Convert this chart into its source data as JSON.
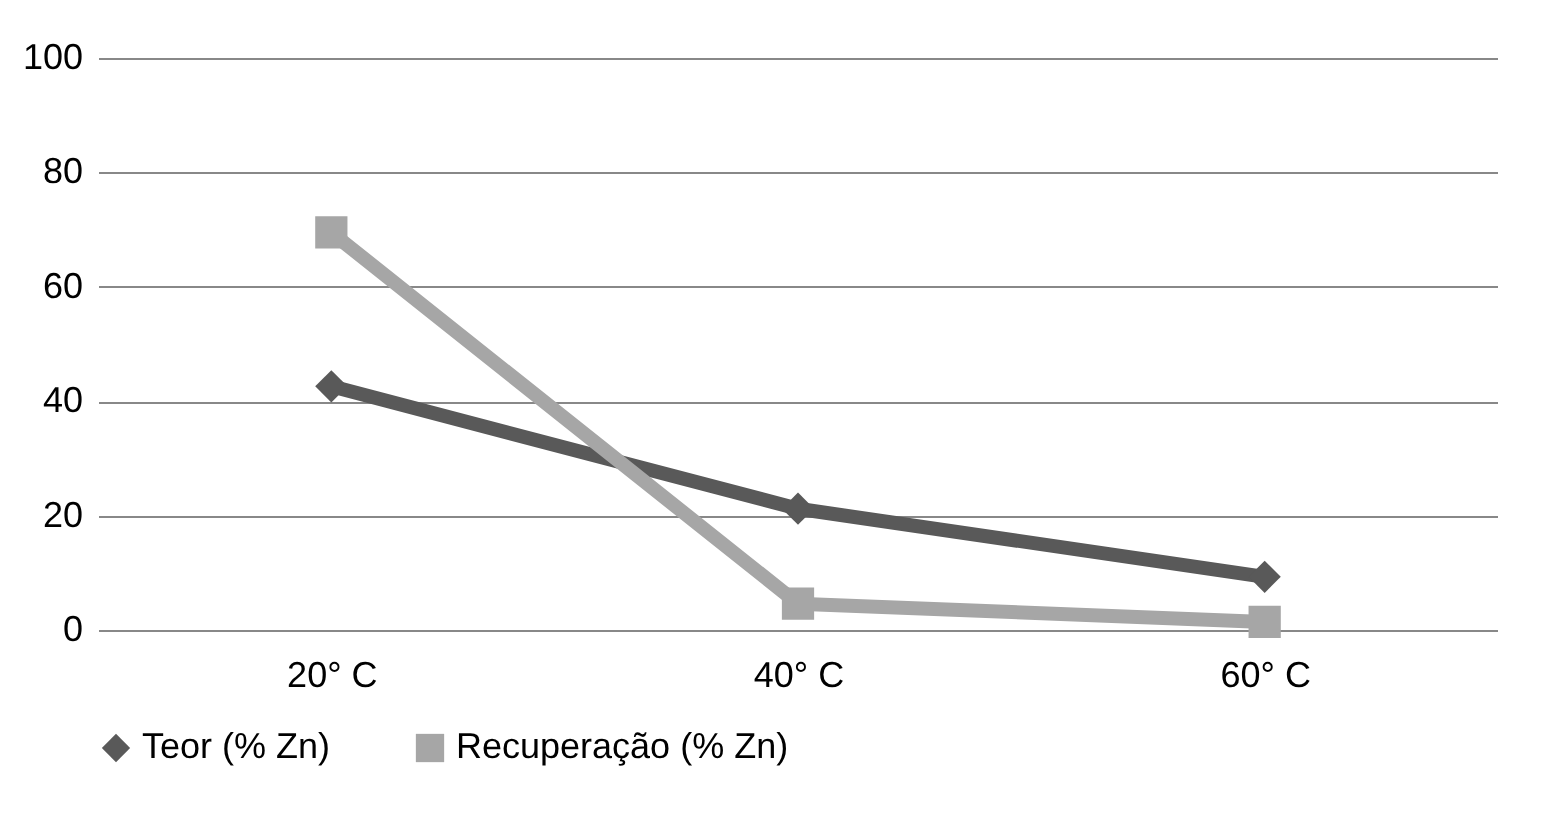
{
  "chart_data": {
    "type": "line",
    "categories": [
      "20° C",
      "40° C",
      "60° C"
    ],
    "series": [
      {
        "name": "Teor (% Zn)",
        "color": "#595959",
        "marker": "diamond",
        "values": [
          42.6,
          21.2,
          9.3
        ]
      },
      {
        "name": "Recuperação (% Zn)",
        "color": "#a6a6a6",
        "marker": "square",
        "values": [
          69.5,
          4.6,
          1.4
        ]
      }
    ],
    "ylim": [
      0,
      100
    ],
    "yticks": [
      0,
      20,
      40,
      60,
      80,
      100
    ],
    "grid": "y",
    "legend": "bottom"
  }
}
